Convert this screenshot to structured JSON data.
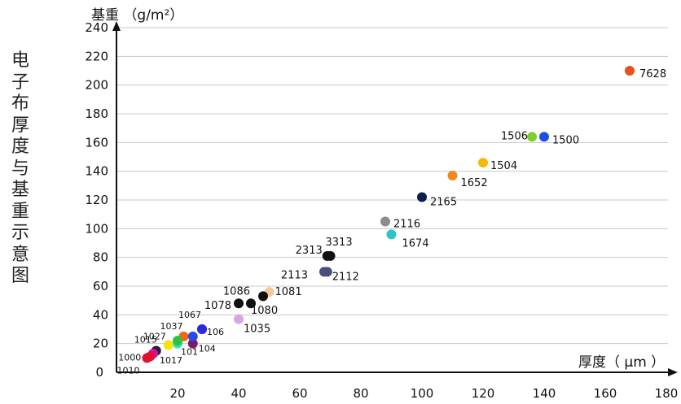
{
  "side_title": "电子布厚度与基重示意图",
  "chart_data": {
    "type": "scatter",
    "xlabel": "厚度（ μm ）",
    "ylabel": "基重 （g/m²）",
    "xlim": [
      0,
      180
    ],
    "ylim": [
      0,
      240
    ],
    "x_ticks": [
      "20",
      "40",
      "60",
      "80",
      "100",
      "120",
      "140",
      "160",
      "180"
    ],
    "y_ticks": [
      "0",
      "20",
      "40",
      "60",
      "80",
      "100",
      "120",
      "140",
      "160",
      "180",
      "200",
      "220",
      "240"
    ],
    "grid": "horizontal",
    "points": [
      {
        "label": "7628",
        "x": 168,
        "y": 210,
        "color": "#e8501a"
      },
      {
        "label": "1506",
        "x": 136,
        "y": 164,
        "color": "#7fd02a"
      },
      {
        "label": "1500",
        "x": 140,
        "y": 164,
        "color": "#1f4fe0"
      },
      {
        "label": "1504",
        "x": 120,
        "y": 146,
        "color": "#f5b90e"
      },
      {
        "label": "1652",
        "x": 110,
        "y": 137,
        "color": "#f08a1d"
      },
      {
        "label": "2165",
        "x": 100,
        "y": 122,
        "color": "#0c1e4a"
      },
      {
        "label": "2116",
        "x": 88,
        "y": 105,
        "color": "#8c8c8c"
      },
      {
        "label": "1674",
        "x": 90,
        "y": 96,
        "color": "#2cc4c4"
      },
      {
        "label": "3313",
        "x": 70,
        "y": 81,
        "color": "#111111"
      },
      {
        "label": "2313",
        "x": 69,
        "y": 81,
        "color": "#111111"
      },
      {
        "label": "2113",
        "x": 68,
        "y": 70,
        "color": "#4a4e7a"
      },
      {
        "label": "2112",
        "x": 69,
        "y": 70,
        "color": "#4a4e7a"
      },
      {
        "label": "1081",
        "x": 50,
        "y": 56,
        "color": "#f5c99a"
      },
      {
        "label": "1086",
        "x": 48,
        "y": 53,
        "color": "#111111"
      },
      {
        "label": "1080",
        "x": 44,
        "y": 48,
        "color": "#111111"
      },
      {
        "label": "1078",
        "x": 40,
        "y": 48,
        "color": "#111111"
      },
      {
        "label": "1035",
        "x": 40,
        "y": 37,
        "color": "#d7a6e6"
      },
      {
        "label": "1067",
        "x": 28,
        "y": 30,
        "color": "#8a1a5a"
      },
      {
        "label": "106",
        "x": 28,
        "y": 30,
        "color": "#2a2ae0"
      },
      {
        "label": "1037",
        "x": 22,
        "y": 25,
        "color": "#f06a10"
      },
      {
        "label": "101",
        "x": 20,
        "y": 20,
        "color": "#33e0c8"
      },
      {
        "label": "104",
        "x": 25,
        "y": 20,
        "color": "#7a1a6a"
      },
      {
        "label": "1027",
        "x": 17,
        "y": 19,
        "color": "#f5e40a"
      },
      {
        "label": "1015",
        "x": 13,
        "y": 15,
        "color": "#2a1a3a"
      },
      {
        "label": "1017",
        "x": 12,
        "y": 13,
        "color": "#d010a0"
      },
      {
        "label": "1000",
        "x": 11,
        "y": 11,
        "color": "#e01030"
      },
      {
        "label": "1010",
        "x": 10,
        "y": 10,
        "color": "#e01030"
      },
      {
        "label": "",
        "x": 25,
        "y": 25,
        "color": "#2a4ae8"
      },
      {
        "label": "",
        "x": 20,
        "y": 22,
        "color": "#30c040"
      }
    ]
  }
}
